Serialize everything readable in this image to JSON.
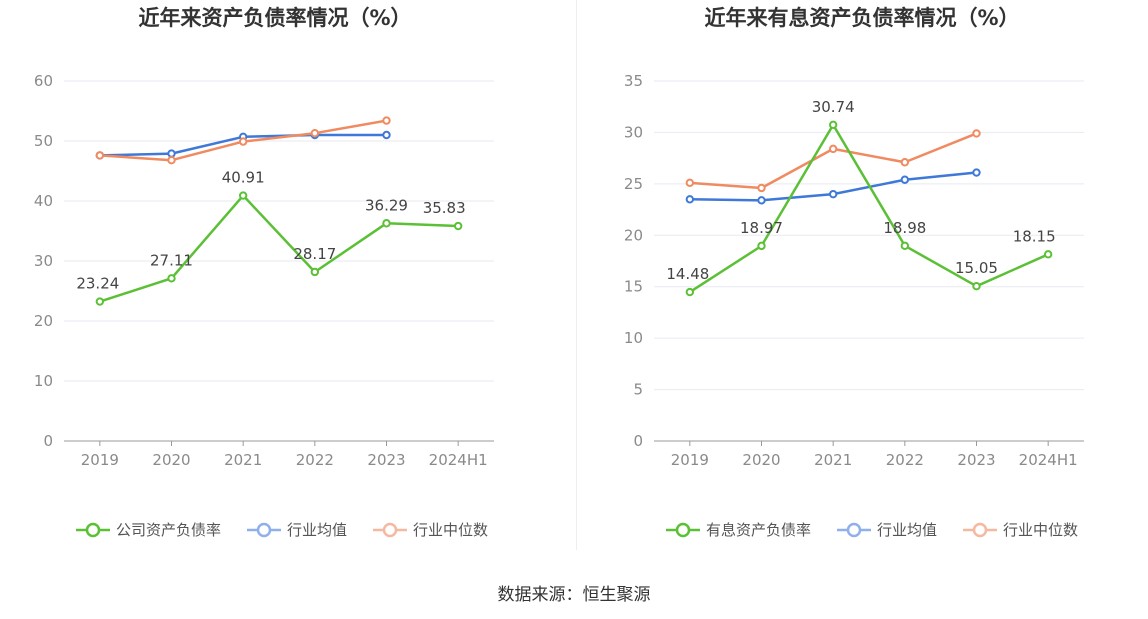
{
  "source_text": "数据来源：恒生聚源",
  "colors": {
    "company": "#5bc035",
    "industry_avg": "#3e78d8",
    "industry_median": "#f08a60",
    "legend_avg": "#8fb0ea",
    "legend_median": "#f5b8a0",
    "grid": "#e8eaf2",
    "axis": "#999999",
    "tick_text": "#8a8a8a",
    "label_text": "#444444",
    "title_text": "#333333"
  },
  "chart_data": [
    {
      "type": "line",
      "title": "近年来资产负债率情况（%）",
      "categories": [
        "2019",
        "2020",
        "2021",
        "2022",
        "2023",
        "2024H1"
      ],
      "ylim": [
        0,
        60
      ],
      "yticks": [
        0,
        10,
        20,
        30,
        40,
        50,
        60
      ],
      "grid": true,
      "legend_position": "bottom",
      "series": [
        {
          "name": "公司资产负债率",
          "key": "company",
          "values": [
            23.24,
            27.11,
            40.91,
            28.17,
            36.29,
            35.83
          ],
          "labels": [
            "23.24",
            "27.11",
            "40.91",
            "28.17",
            "36.29",
            "35.83"
          ]
        },
        {
          "name": "行业均值",
          "key": "industry_avg",
          "values": [
            47.6,
            47.9,
            50.7,
            51.0,
            51.0,
            null
          ]
        },
        {
          "name": "行业中位数",
          "key": "industry_median",
          "values": [
            47.6,
            46.8,
            49.9,
            51.3,
            53.4,
            null
          ]
        }
      ]
    },
    {
      "type": "line",
      "title": "近年来有息资产负债率情况（%）",
      "categories": [
        "2019",
        "2020",
        "2021",
        "2022",
        "2023",
        "2024H1"
      ],
      "ylim": [
        0,
        35
      ],
      "yticks": [
        0,
        5,
        10,
        15,
        20,
        25,
        30,
        35
      ],
      "grid": true,
      "legend_position": "bottom",
      "series": [
        {
          "name": "有息资产负债率",
          "key": "company",
          "values": [
            14.48,
            18.97,
            30.74,
            18.98,
            15.05,
            18.15
          ],
          "labels": [
            "14.48",
            "18.97",
            "30.74",
            "18.98",
            "15.05",
            "18.15"
          ]
        },
        {
          "name": "行业均值",
          "key": "industry_avg",
          "values": [
            23.5,
            23.4,
            24.0,
            25.4,
            26.1,
            null
          ]
        },
        {
          "name": "行业中位数",
          "key": "industry_median",
          "values": [
            25.1,
            24.6,
            28.4,
            27.1,
            29.9,
            null
          ]
        }
      ]
    }
  ]
}
